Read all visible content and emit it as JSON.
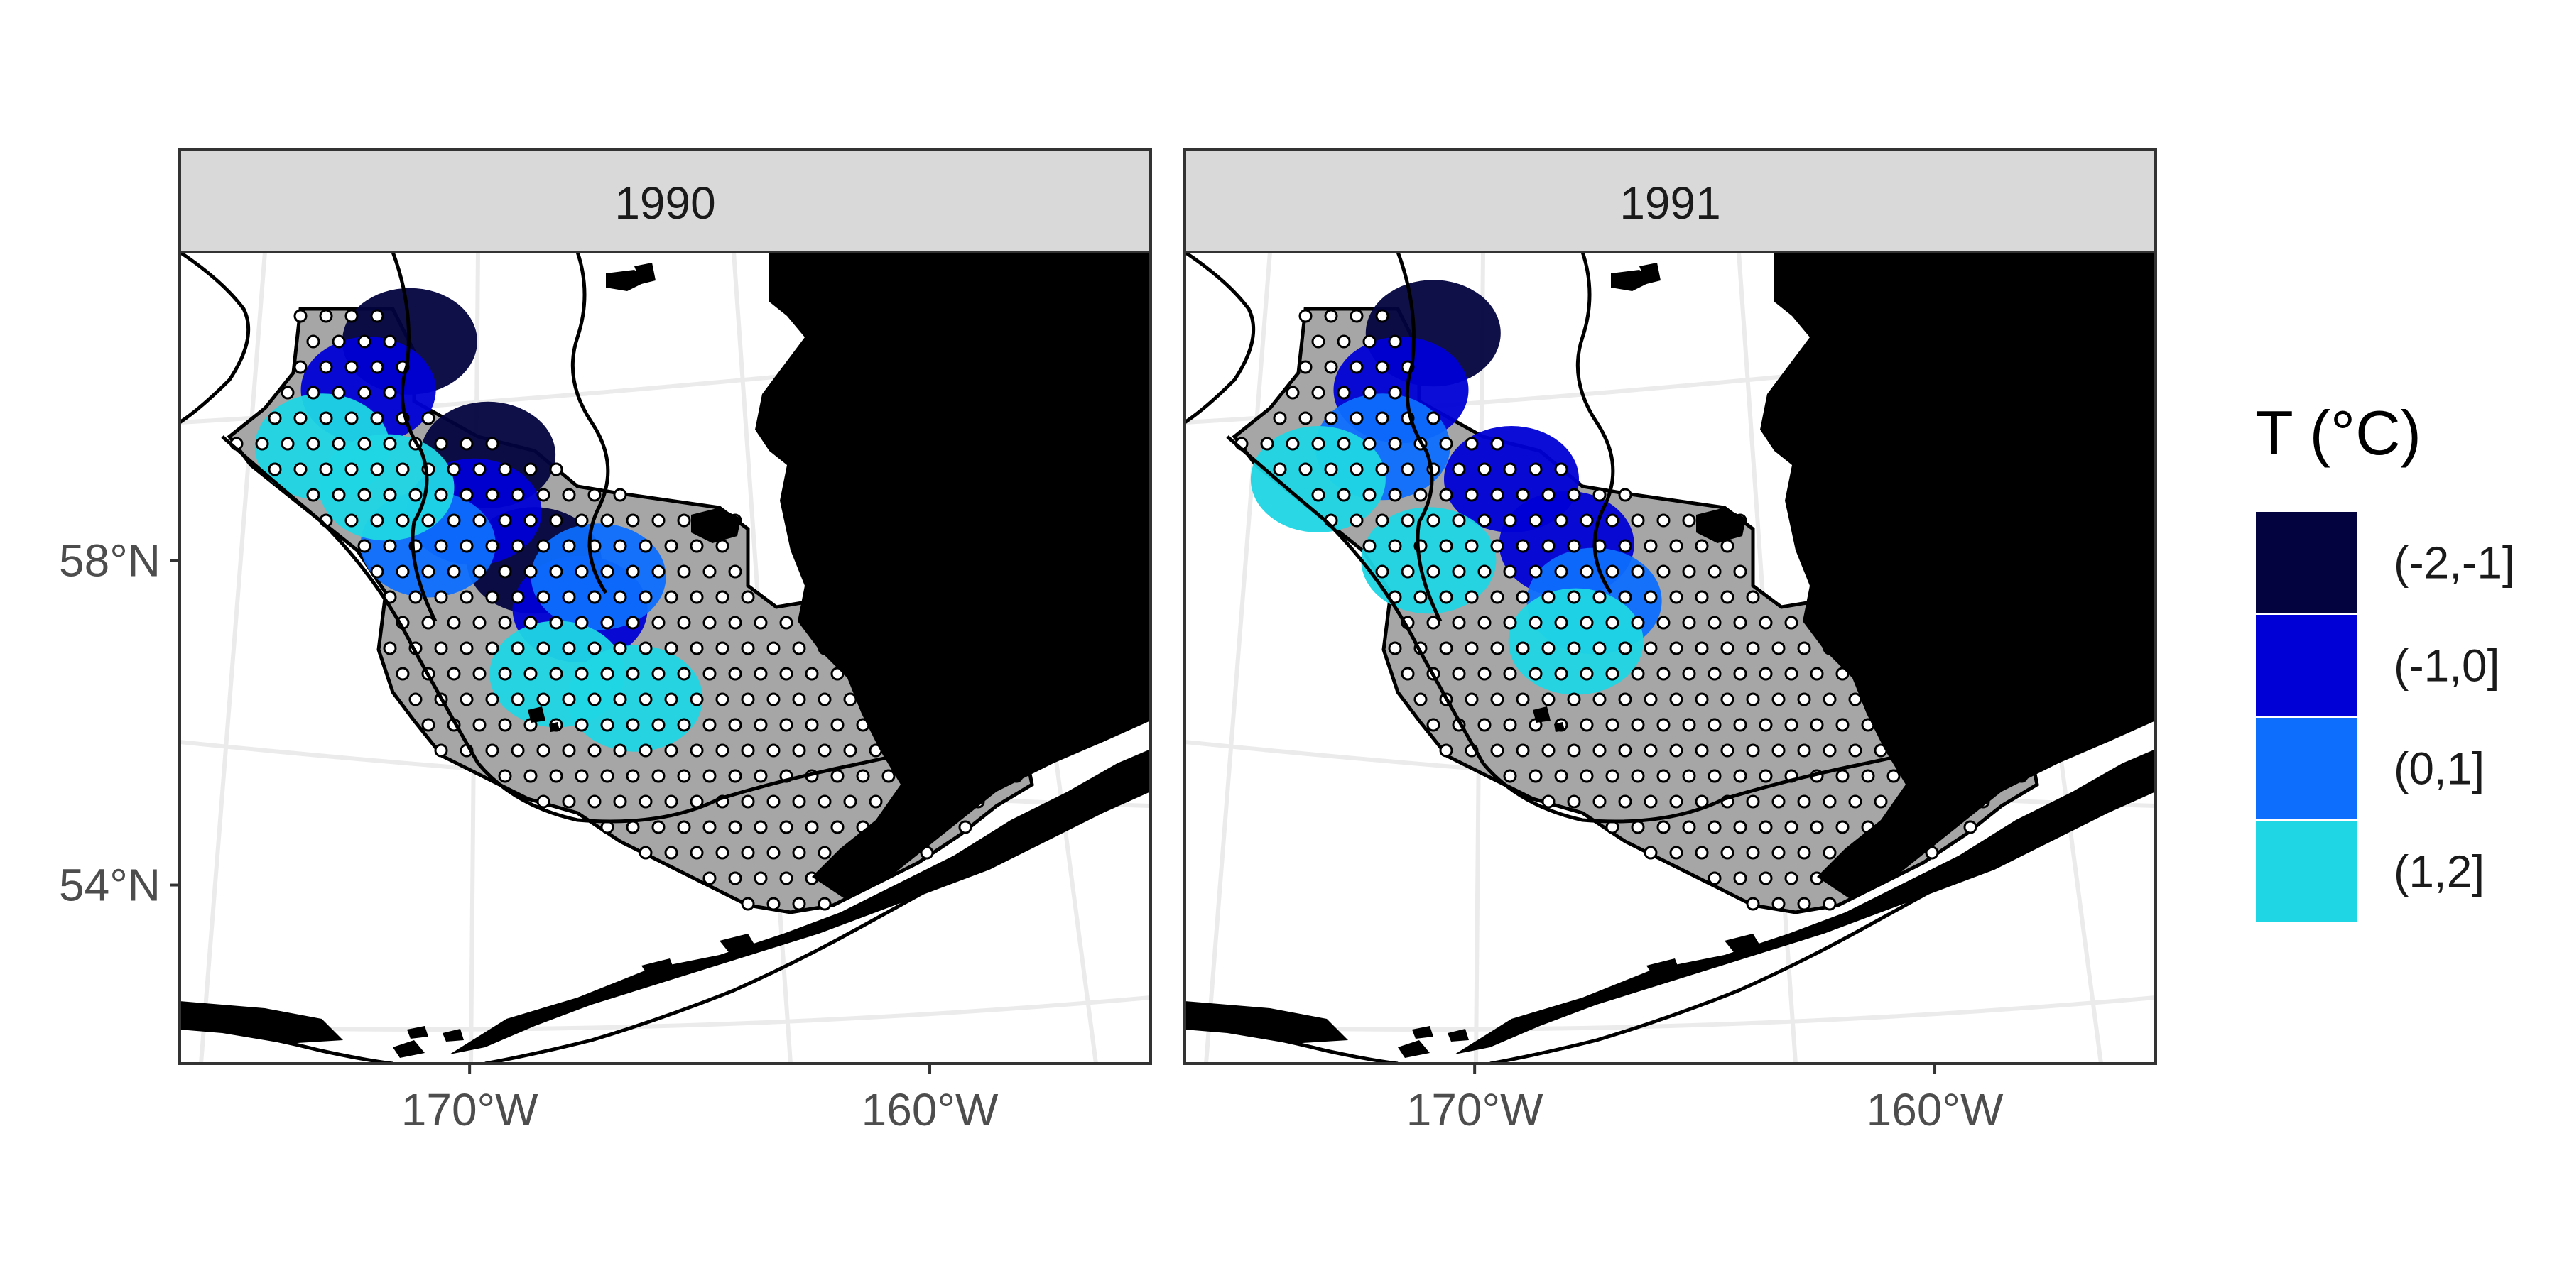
{
  "chart_data": {
    "type": "map",
    "panels": [
      {
        "title": "1990",
        "zones": [
          {
            "lon": -171.3,
            "lat": 60.7,
            "bin": "(-2,-1]"
          },
          {
            "lon": -169.6,
            "lat": 59.3,
            "bin": "(-2,-1]"
          },
          {
            "lon": -168.6,
            "lat": 58.0,
            "bin": "(-2,-1]"
          },
          {
            "lon": -172.2,
            "lat": 60.1,
            "bin": "(-1,0]"
          },
          {
            "lon": -169.9,
            "lat": 58.6,
            "bin": "(-1,0]"
          },
          {
            "lon": -167.6,
            "lat": 57.4,
            "bin": "(-1,0]"
          },
          {
            "lon": -170.9,
            "lat": 58.2,
            "bin": "(0,1]"
          },
          {
            "lon": -167.2,
            "lat": 57.8,
            "bin": "(0,1]"
          },
          {
            "lon": -173.2,
            "lat": 59.4,
            "bin": "(1,2]"
          },
          {
            "lon": -171.8,
            "lat": 58.9,
            "bin": "(1,2]"
          },
          {
            "lon": -168.1,
            "lat": 56.6,
            "bin": "(1,2]"
          },
          {
            "lon": -166.4,
            "lat": 56.3,
            "bin": "(1,2]"
          }
        ]
      },
      {
        "title": "1991",
        "zones": [
          {
            "lon": -170.9,
            "lat": 60.8,
            "bin": "(-2,-1]"
          },
          {
            "lon": -171.6,
            "lat": 60.1,
            "bin": "(-1,0]"
          },
          {
            "lon": -169.2,
            "lat": 59.0,
            "bin": "(-1,0]"
          },
          {
            "lon": -168.0,
            "lat": 58.2,
            "bin": "(-1,0]"
          },
          {
            "lon": -172.0,
            "lat": 59.4,
            "bin": "(0,1]"
          },
          {
            "lon": -167.4,
            "lat": 57.5,
            "bin": "(0,1]"
          },
          {
            "lon": -173.4,
            "lat": 59.0,
            "bin": "(1,2]"
          },
          {
            "lon": -171.0,
            "lat": 58.0,
            "bin": "(1,2]"
          },
          {
            "lon": -167.8,
            "lat": 57.0,
            "bin": "(1,2]"
          }
        ]
      }
    ],
    "x_ticks": [
      {
        "value": -170,
        "label": "170°W"
      },
      {
        "value": -160,
        "label": "160°W"
      }
    ],
    "y_ticks": [
      {
        "value": 58,
        "label": "58°N"
      },
      {
        "value": 54,
        "label": "54°N"
      }
    ],
    "xlim": [
      -176.3,
      -155.2
    ],
    "ylim": [
      51.8,
      61.8
    ],
    "legend": {
      "title": "T (°C)",
      "placement": "right",
      "entries": [
        {
          "label": "(-2,-1]",
          "color": "#03033f"
        },
        {
          "label": "(-1,0]",
          "color": "#0000d6"
        },
        {
          "label": "(0,1]",
          "color": "#0d6efd"
        },
        {
          "label": "(1,2]",
          "color": "#1fd6e4"
        }
      ]
    },
    "colors": {
      "land": "#000000",
      "survey_area": "#a6a6a6",
      "station_fill": "#ffffff",
      "station_stroke": "#000000",
      "strip": "#d9d9d9",
      "graticule": "#ebebeb"
    },
    "grid": true
  }
}
